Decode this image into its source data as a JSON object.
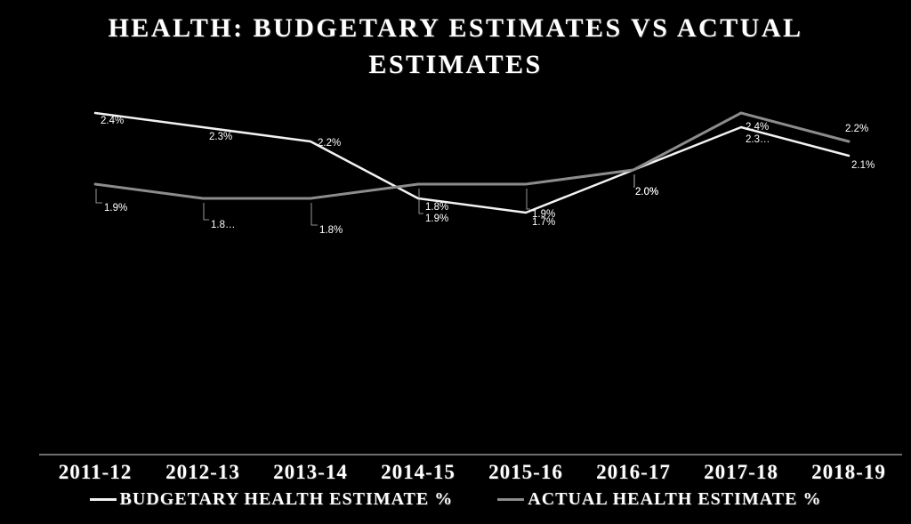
{
  "title": {
    "lines": [
      "HEALTH: BUDGETARY ESTIMATES VS ACTUAL",
      "ESTIMATES"
    ]
  },
  "chart_data": {
    "type": "line",
    "title": "HEALTH: BUDGETARY ESTIMATES VS ACTUAL ESTIMATES",
    "categories": [
      "2011-12",
      "2012-13",
      "2013-14",
      "2014-15",
      "2015-16",
      "2016-17",
      "2017-18",
      "2018-19"
    ],
    "series": [
      {
        "name": "BUDGETARY HEALTH ESTIMATE %",
        "color": "#f2f2f2",
        "values": [
          2.4,
          2.3,
          2.2,
          1.8,
          1.7,
          2.0,
          2.3,
          2.1
        ],
        "point_labels": [
          "2.4%",
          "2.3%",
          "2.2%",
          "1.8%",
          "1.7%",
          "2.0%",
          "2.3…",
          "2.1%"
        ]
      },
      {
        "name": "ACTUAL HEALTH ESTIMATE %",
        "color": "#8c8c8c",
        "values": [
          1.9,
          1.8,
          1.8,
          1.9,
          1.9,
          2.0,
          2.4,
          2.2
        ],
        "point_labels": [
          "1.9%",
          "1.8…",
          "1.8%",
          "1.9%",
          "1.9%",
          "2.0%",
          "2.4%",
          "2.2%"
        ]
      }
    ],
    "ylim": [
      0,
      2.6
    ],
    "grid": false,
    "xlabel": "",
    "ylabel": "",
    "legend_position": "bottom"
  },
  "legend": {
    "items": [
      {
        "label": "BUDGETARY HEALTH ESTIMATE %",
        "color": "#f2f2f2"
      },
      {
        "label": "ACTUAL HEALTH ESTIMATE %",
        "color": "#8c8c8c"
      }
    ]
  },
  "colors": {
    "background": "#000000",
    "text": "#ffffff",
    "axis_line": "#d9d9d9"
  }
}
